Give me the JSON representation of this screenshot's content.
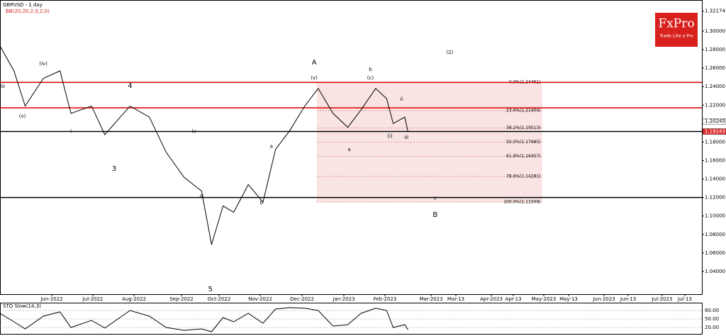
{
  "chart_data": {
    "type": "line",
    "title": "GBPUSD - 1 day",
    "subtitle": "BB(20,20,2.0,2,0)",
    "logo": {
      "brand": "FxPro",
      "tagline": "Trade Like a Pro"
    },
    "xlim": [
      "2022-04-25",
      "2023-07-23"
    ],
    "xticks": [
      {
        "value": "2022-06-01",
        "label": "Jun-2022"
      },
      {
        "value": "2022-07-01",
        "label": "Jul-2022"
      },
      {
        "value": "2022-08-01",
        "label": "Aug-2022"
      },
      {
        "value": "2022-09-01",
        "label": "Sep-2022"
      },
      {
        "value": "2022-10-01",
        "label": "Oct-2022"
      },
      {
        "value": "2022-11-01",
        "label": "Nov-2022"
      },
      {
        "value": "2022-12-01",
        "label": "Dec-2022"
      },
      {
        "value": "2023-01-01",
        "label": "Jan-2023"
      },
      {
        "value": "2023-02-01",
        "label": "Feb-2023"
      },
      {
        "value": "2023-03-01",
        "label": "Mar-2023"
      },
      {
        "value": "2023-03-13",
        "label": "Mar-13"
      },
      {
        "value": "2023-04-01",
        "label": "Apr-2023"
      },
      {
        "value": "2023-04-13",
        "label": "Apr-13"
      },
      {
        "value": "2023-05-01",
        "label": "May-2023"
      },
      {
        "value": "2023-05-13",
        "label": "May-13"
      },
      {
        "value": "2023-06-01",
        "label": "Jun-2023"
      },
      {
        "value": "2023-06-13",
        "label": "Jun-13"
      },
      {
        "value": "2023-07-01",
        "label": "Jul-2023"
      },
      {
        "value": "2023-07-13",
        "label": "Jul-13"
      }
    ],
    "ylim": [
      1.0154,
      1.3299
    ],
    "yticks": [
      {
        "value": 1.32174,
        "label": "1.32174"
      },
      {
        "value": 1.3,
        "label": "1.30000"
      },
      {
        "value": 1.28,
        "label": "1.28000"
      },
      {
        "value": 1.26,
        "label": "1.26000"
      },
      {
        "value": 1.24,
        "label": "1.24000"
      },
      {
        "value": 1.22,
        "label": "1.22000"
      },
      {
        "value": 1.18,
        "label": "1.18000"
      },
      {
        "value": 1.16,
        "label": "1.16000"
      },
      {
        "value": 1.14,
        "label": "1.14000"
      },
      {
        "value": 1.12,
        "label": "1.12000"
      },
      {
        "value": 1.1,
        "label": "1.10000"
      },
      {
        "value": 1.08,
        "label": "1.08000"
      },
      {
        "value": 1.06,
        "label": "1.06000"
      },
      {
        "value": 1.04,
        "label": "1.04000"
      }
    ],
    "price_tags": [
      {
        "value": 1.20245,
        "label": "1.20245",
        "color": "#ffffff"
      },
      {
        "value": 1.19143,
        "label": "1.19143",
        "color": "#e03030"
      }
    ],
    "levels": [
      {
        "value": 1.2446,
        "color": "#e00000"
      },
      {
        "value": 1.217,
        "color": "#e00000"
      },
      {
        "value": 1.1914,
        "color": "#000000"
      },
      {
        "value": 1.12,
        "color": "#000000"
      }
    ],
    "fib": {
      "start": "2022-12-12",
      "end": "2023-04-30",
      "color": "#f5d0d0",
      "levels": [
        {
          "value": 1.24461,
          "label": "0.0%(1.24461)"
        },
        {
          "value": 1.21404,
          "label": "23.6%(1.21404)"
        },
        {
          "value": 1.19513,
          "label": "38.2%(1.19513)"
        },
        {
          "value": 1.17985,
          "label": "50.0%(1.17985)"
        },
        {
          "value": 1.16457,
          "label": "61.8%(1.16457)"
        },
        {
          "value": 1.14281,
          "label": "78.6%(1.14281)"
        },
        {
          "value": 1.11509,
          "label": "100.0%(1.11509)"
        }
      ]
    },
    "x": [
      "2022-04-25",
      "2022-05-05",
      "2022-05-13",
      "2022-05-26",
      "2022-06-07",
      "2022-06-15",
      "2022-06-30",
      "2022-07-10",
      "2022-07-29",
      "2022-08-11",
      "2022-08-22",
      "2022-09-03",
      "2022-09-17",
      "2022-09-25",
      "2022-10-04",
      "2022-10-12",
      "2022-10-23",
      "2022-11-03",
      "2022-11-12",
      "2022-11-22",
      "2022-12-03",
      "2022-12-13",
      "2022-12-24",
      "2023-01-04",
      "2023-01-14",
      "2023-01-25",
      "2023-02-02",
      "2023-02-06",
      "2023-02-13",
      "2023-02-15"
    ],
    "series": [
      {
        "name": "GBPUSD",
        "color": "#000000",
        "values": [
          1.2839,
          1.257,
          1.219,
          1.249,
          1.257,
          1.211,
          1.219,
          1.188,
          1.219,
          1.207,
          1.169,
          1.142,
          1.127,
          1.069,
          1.111,
          1.104,
          1.134,
          1.115,
          1.172,
          1.192,
          1.219,
          1.238,
          1.211,
          1.196,
          1.215,
          1.238,
          1.227,
          1.2,
          1.207,
          1.191
        ]
      }
    ],
    "annotations": [
      {
        "text": "A",
        "date": "2022-12-10",
        "price": 1.2663
      },
      {
        "text": "B",
        "date": "2023-03-03",
        "price": 1.1015
      },
      {
        "text": "(2)",
        "date": "2023-03-10",
        "price": 1.277
      },
      {
        "text": "3",
        "date": "2022-07-17",
        "price": 1.1512
      },
      {
        "text": "4",
        "date": "2022-07-29",
        "price": 1.2409
      },
      {
        "text": "5",
        "date": "2022-09-24",
        "price": 1.0209
      },
      {
        "text": "c",
        "date": "2023-03-03",
        "price": 1.1195
      },
      {
        "text": "(iv)",
        "date": "2022-05-26",
        "price": 1.2646
      },
      {
        "text": "(v)",
        "date": "2022-05-11",
        "price": 1.208
      },
      {
        "text": "iii",
        "date": "2022-04-27",
        "price": 1.2401
      },
      {
        "text": "i",
        "date": "2022-06-15",
        "price": 1.1915
      },
      {
        "text": "iv",
        "date": "2022-09-11",
        "price": 1.1915
      },
      {
        "text": "iii",
        "date": "2022-09-17",
        "price": 1.121
      },
      {
        "text": "b",
        "date": "2022-11-02",
        "price": 1.1145
      },
      {
        "text": "a",
        "date": "2022-11-09",
        "price": 1.1755
      },
      {
        "text": "(v)",
        "date": "2022-12-10",
        "price": 1.2495
      },
      {
        "text": "b",
        "date": "2023-01-21",
        "price": 1.2586
      },
      {
        "text": "(c)",
        "date": "2023-01-21",
        "price": 1.2495
      },
      {
        "text": "ii",
        "date": "2023-02-11",
        "price": 1.2263
      },
      {
        "text": "iii",
        "date": "2023-02-14",
        "price": 1.185
      },
      {
        "text": "(i)",
        "date": "2023-02-04",
        "price": 1.1865
      },
      {
        "text": "a",
        "date": "2023-01-05",
        "price": 1.172
      }
    ],
    "oscillator": {
      "label": "STO Slow(14,3)",
      "ylim": [
        0,
        100
      ],
      "yticks": [
        {
          "value": 80,
          "label": "80.00"
        },
        {
          "value": 50,
          "label": "50.00"
        },
        {
          "value": 20,
          "label": "20.00"
        }
      ],
      "series": [
        {
          "name": "Main",
          "color": "#000000",
          "values": [
            70,
            40,
            15,
            60,
            75,
            20,
            45,
            18,
            80,
            60,
            20,
            10,
            15,
            5,
            55,
            40,
            70,
            35,
            85,
            90,
            88,
            80,
            25,
            30,
            70,
            88,
            80,
            20,
            30,
            12
          ]
        }
      ]
    }
  }
}
